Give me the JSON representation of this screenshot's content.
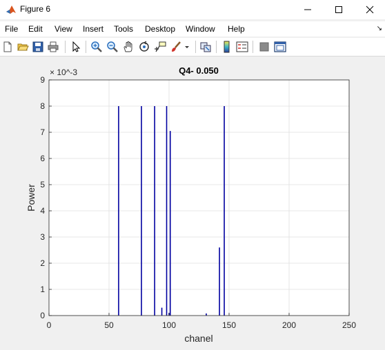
{
  "window": {
    "title": "Figure 6",
    "icon": "matlab-icon",
    "controls": [
      "minimize-icon",
      "maximize-icon",
      "close-icon"
    ]
  },
  "menu": {
    "items": [
      "File",
      "Edit",
      "View",
      "Insert",
      "Tools",
      "Desktop",
      "Window",
      "Help"
    ]
  },
  "toolbar": {
    "icons": [
      "new-figure-icon",
      "open-file-icon",
      "save-icon",
      "print-icon",
      "edit-plot-arrow-icon",
      "zoom-in-icon",
      "zoom-out-icon",
      "pan-hand-icon",
      "rotate-3d-icon",
      "data-cursor-icon",
      "brush-icon",
      "brush-dropdown-icon",
      "link-plot-icon",
      "insert-colorbar-icon",
      "insert-legend-icon",
      "hide-plot-tools-icon",
      "show-plot-tools-icon"
    ]
  },
  "chart_data": {
    "type": "bar",
    "title": "Q4- 0.050",
    "xlabel": "chanel",
    "ylabel": "Power",
    "y_exponent": "× 10^-3",
    "xlim": [
      0,
      250
    ],
    "ylim": [
      0,
      9
    ],
    "xticks": [
      0,
      50,
      100,
      150,
      200,
      250
    ],
    "yticks": [
      0,
      1,
      2,
      3,
      4,
      5,
      6,
      7,
      8,
      9
    ],
    "grid": true,
    "color": "#0000a0",
    "x": [
      58,
      77,
      88,
      94,
      98,
      100,
      101,
      131,
      142,
      146
    ],
    "values": [
      8.0,
      8.0,
      8.0,
      0.3,
      8.0,
      0.1,
      7.05,
      0.08,
      2.6,
      8.0
    ]
  }
}
